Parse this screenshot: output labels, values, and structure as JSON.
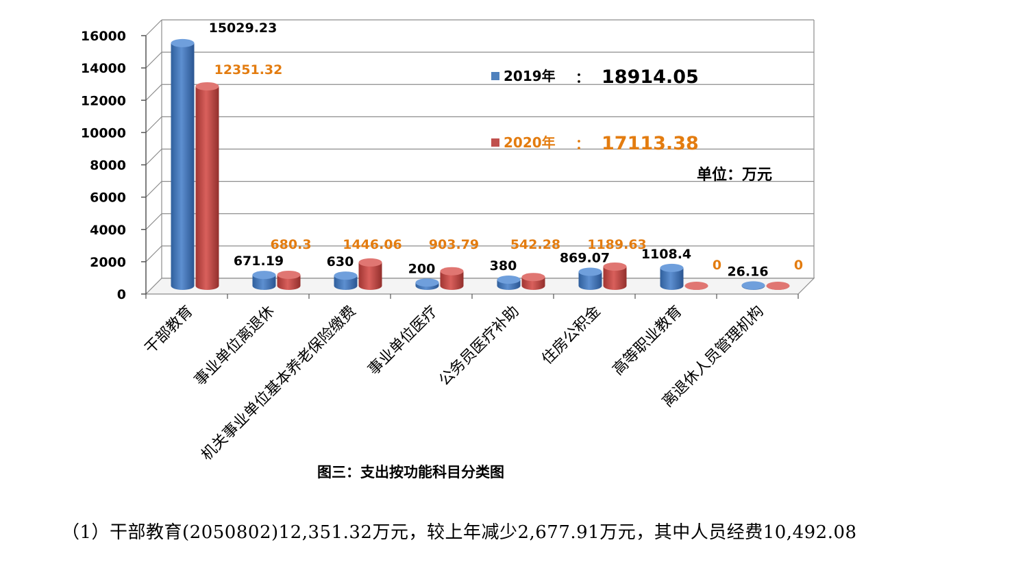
{
  "chart_data": {
    "type": "bar",
    "title": "",
    "caption": "图三：支出按功能科目分类图",
    "unit_label": "单位：万元",
    "ylim": [
      0,
      16000
    ],
    "yticks": [
      "16000",
      "14000",
      "12000",
      "10000",
      "8000",
      "6000",
      "4000",
      "2000",
      "0"
    ],
    "categories": [
      "干部教育",
      "事业单位离退休",
      "机关事业单位基本养老保险缴费",
      "事业单位医疗",
      "公务员医疗补助",
      "住房公积金",
      "高等职业教育",
      "离退休人员管理机构"
    ],
    "series": [
      {
        "name": "2019年",
        "color": "#4f81bd",
        "values": [
          15029.23,
          671.19,
          630,
          200,
          380,
          869.07,
          1108.4,
          26.16
        ],
        "labels": [
          "15029.23",
          "671.19",
          "630",
          "200",
          "380",
          "869.07",
          "1108.4",
          "26.16"
        ]
      },
      {
        "name": "2020年",
        "color": "#c0504d",
        "values": [
          12351.32,
          680.3,
          1446.06,
          903.79,
          542.28,
          1189.63,
          0,
          0
        ],
        "labels": [
          "12351.32",
          "680.3",
          "1446.06",
          "903.79",
          "542.28",
          "1189.63",
          "0",
          "0"
        ]
      }
    ],
    "legend": [
      {
        "label": "2019年",
        "separator": "：",
        "total": "18914.05",
        "color": "#4f81bd",
        "text_color": "#000000"
      },
      {
        "label": "2020年",
        "separator": "：",
        "total": "17113.38",
        "color": "#c0504d",
        "text_color": "#e37c10"
      }
    ],
    "grid": true,
    "legend_position": "inside-right"
  },
  "body_text": "（1）干部教育(2050802)12,351.32万元，较上年减少2,677.91万元，其中人员经费10,492.08"
}
